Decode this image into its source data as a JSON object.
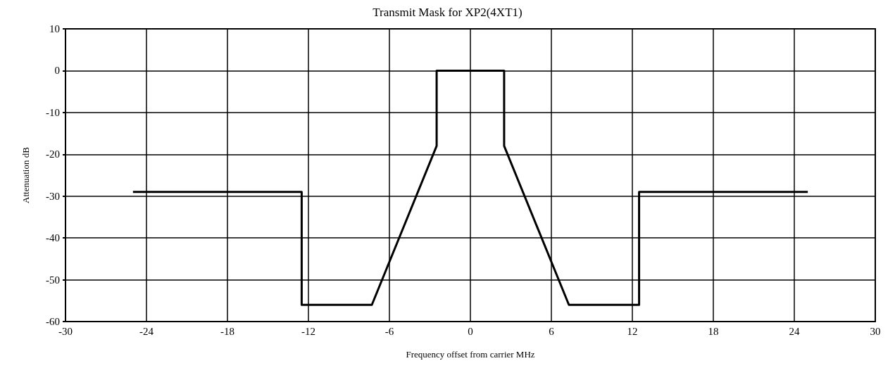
{
  "chart_data": {
    "type": "line",
    "title": "Transmit Mask for XP2(4XT1)",
    "xlabel": "Frequency offset from carrier MHz",
    "ylabel": "Attenuation dB",
    "series": [
      {
        "color": "#000000",
        "x": [
          -25,
          -12.5,
          -12.5,
          -7.3,
          -2.5,
          -2.5,
          2.5,
          2.5,
          7.3,
          12.5,
          12.5,
          25
        ],
        "values": [
          -29,
          -29,
          -56,
          -56,
          -18,
          0,
          0,
          -18,
          -56,
          -56,
          -29,
          -29
        ]
      }
    ],
    "xlim": [
      -30,
      30
    ],
    "xticks": [
      -30,
      -24,
      -18,
      -12,
      -6,
      0,
      6,
      12,
      18,
      24,
      30
    ],
    "ylim": [
      -60,
      10
    ],
    "yticks": [
      -60,
      -50,
      -40,
      -30,
      -20,
      -10,
      0,
      10
    ],
    "grid": true,
    "marker": "none",
    "line_style": "solid"
  }
}
